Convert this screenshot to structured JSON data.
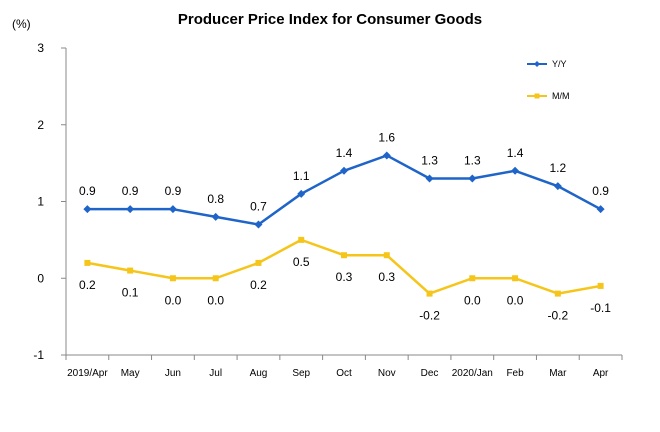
{
  "chart_data": {
    "type": "line",
    "title": "Producer Price Index for Consumer Goods",
    "ylabel": "(%)",
    "xlabel": "",
    "categories": [
      "2019/Apr",
      "May",
      "Jun",
      "Jul",
      "Aug",
      "Sep",
      "Oct",
      "Nov",
      "Dec",
      "2020/Jan",
      "Feb",
      "Mar",
      "Apr"
    ],
    "ylim": [
      -1,
      3
    ],
    "yticks": [
      "-1",
      "0",
      "1",
      "2",
      "3"
    ],
    "grid": false,
    "legend_placement": "top-right",
    "series": [
      {
        "name": "Y/Y",
        "color": "#1f64c8",
        "marker": "diamond",
        "values": [
          0.9,
          0.9,
          0.9,
          0.8,
          0.7,
          1.1,
          1.4,
          1.6,
          1.3,
          1.3,
          1.4,
          1.2,
          0.9
        ],
        "labels": [
          "0.9",
          "0.9",
          "0.9",
          "0.8",
          "0.7",
          "1.1",
          "1.4",
          "1.6",
          "1.3",
          "1.3",
          "1.4",
          "1.2",
          "0.9"
        ]
      },
      {
        "name": "M/M",
        "color": "#f5c51a",
        "marker": "square",
        "values": [
          0.2,
          0.1,
          0.0,
          0.0,
          0.2,
          0.5,
          0.3,
          0.3,
          -0.2,
          0.0,
          0.0,
          -0.2,
          -0.1
        ],
        "labels": [
          "0.2",
          "0.1",
          "0.0",
          "0.0",
          "0.2",
          "0.5",
          "0.3",
          "0.3",
          "-0.2",
          "0.0",
          "0.0",
          "-0.2",
          "-0.1"
        ]
      }
    ]
  }
}
